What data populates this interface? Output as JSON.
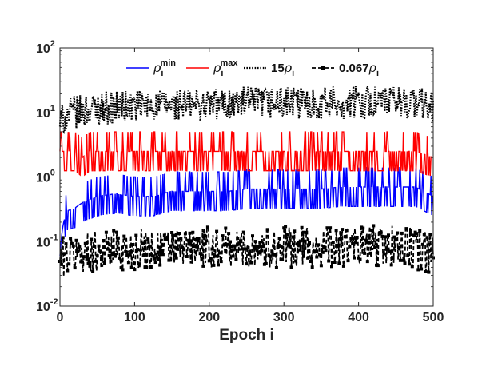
{
  "chart_data": {
    "type": "line",
    "xlabel": "Epoch i",
    "ylabel": "",
    "xlim": [
      0,
      500
    ],
    "ylim": [
      0.01,
      100
    ],
    "y_scale": "log",
    "grid": false,
    "legend_placement": "top, horizontal inside axes",
    "x_ticks": [
      "0",
      "100",
      "200",
      "300",
      "400",
      "500"
    ],
    "y_ticks": [
      {
        "base": "10",
        "exp": "-2"
      },
      {
        "base": "10",
        "exp": "-1"
      },
      {
        "base": "10",
        "exp": "0"
      },
      {
        "base": "10",
        "exp": "1"
      },
      {
        "base": "10",
        "exp": "2"
      }
    ],
    "legend": [
      {
        "sym": "ρ",
        "sub": "i",
        "sup": "min",
        "prefix": "",
        "color": "#0000ff",
        "style": "solid"
      },
      {
        "sym": "ρ",
        "sub": "i",
        "sup": "max",
        "prefix": "",
        "color": "#ff0000",
        "style": "solid"
      },
      {
        "sym": "ρ",
        "sub": "i",
        "sup": "",
        "prefix": "15",
        "color": "#000000",
        "style": "dotted"
      },
      {
        "sym": "ρ",
        "sub": "i",
        "sup": "",
        "prefix": "0.067",
        "color": "#000000",
        "style": "dashed-square"
      }
    ],
    "series": [
      {
        "name": "ρ_i^min",
        "color": "#0000ff",
        "style": "solid",
        "x": [
          0,
          5,
          10,
          20,
          30,
          40,
          50,
          75,
          100,
          125,
          150,
          175,
          200,
          225,
          250,
          275,
          300,
          325,
          350,
          375,
          400,
          425,
          450,
          475,
          500
        ],
        "y": [
          0.06,
          0.2,
          0.3,
          0.33,
          0.4,
          0.45,
          0.5,
          0.55,
          0.5,
          0.5,
          0.6,
          0.6,
          0.6,
          0.6,
          0.65,
          0.65,
          0.65,
          0.65,
          0.65,
          0.7,
          0.7,
          0.7,
          0.7,
          0.7,
          0.5
        ]
      },
      {
        "name": "ρ_i^max",
        "color": "#ff0000",
        "style": "solid",
        "x": [
          0,
          5,
          10,
          20,
          30,
          40,
          50,
          75,
          100,
          125,
          150,
          175,
          200,
          225,
          250,
          275,
          300,
          325,
          350,
          375,
          400,
          425,
          450,
          475,
          500
        ],
        "y": [
          2.5,
          2.5,
          2.5,
          2.5,
          2.0,
          2.5,
          2.5,
          2.5,
          2.5,
          2.5,
          2.5,
          2.5,
          2.5,
          2.5,
          2.5,
          2.5,
          2.5,
          2.5,
          2.5,
          2.5,
          2.5,
          2.5,
          2.5,
          2.5,
          2.0
        ]
      },
      {
        "name": "15ρ_i",
        "color": "#000000",
        "style": "dotted",
        "x": [
          0,
          5,
          10,
          20,
          30,
          40,
          50,
          75,
          100,
          125,
          150,
          175,
          200,
          225,
          250,
          275,
          300,
          325,
          350,
          375,
          400,
          425,
          450,
          475,
          500
        ],
        "y": [
          7.0,
          8.0,
          9.0,
          10.0,
          10.5,
          11.0,
          11.5,
          12.0,
          12.5,
          13.0,
          13.0,
          13.0,
          13.5,
          13.5,
          14.0,
          14.0,
          14.0,
          14.0,
          14.0,
          14.0,
          14.5,
          14.5,
          14.5,
          14.5,
          12.0
        ]
      },
      {
        "name": "0.067ρ_i",
        "color": "#000000",
        "style": "dashed-square",
        "x": [
          0,
          5,
          10,
          20,
          30,
          40,
          50,
          75,
          100,
          125,
          150,
          175,
          200,
          225,
          250,
          275,
          300,
          325,
          350,
          375,
          400,
          425,
          450,
          475,
          500
        ],
        "y": [
          0.055,
          0.06,
          0.062,
          0.065,
          0.068,
          0.07,
          0.072,
          0.075,
          0.075,
          0.078,
          0.078,
          0.08,
          0.08,
          0.08,
          0.08,
          0.082,
          0.082,
          0.082,
          0.082,
          0.082,
          0.085,
          0.085,
          0.085,
          0.08,
          0.06
        ]
      }
    ]
  }
}
